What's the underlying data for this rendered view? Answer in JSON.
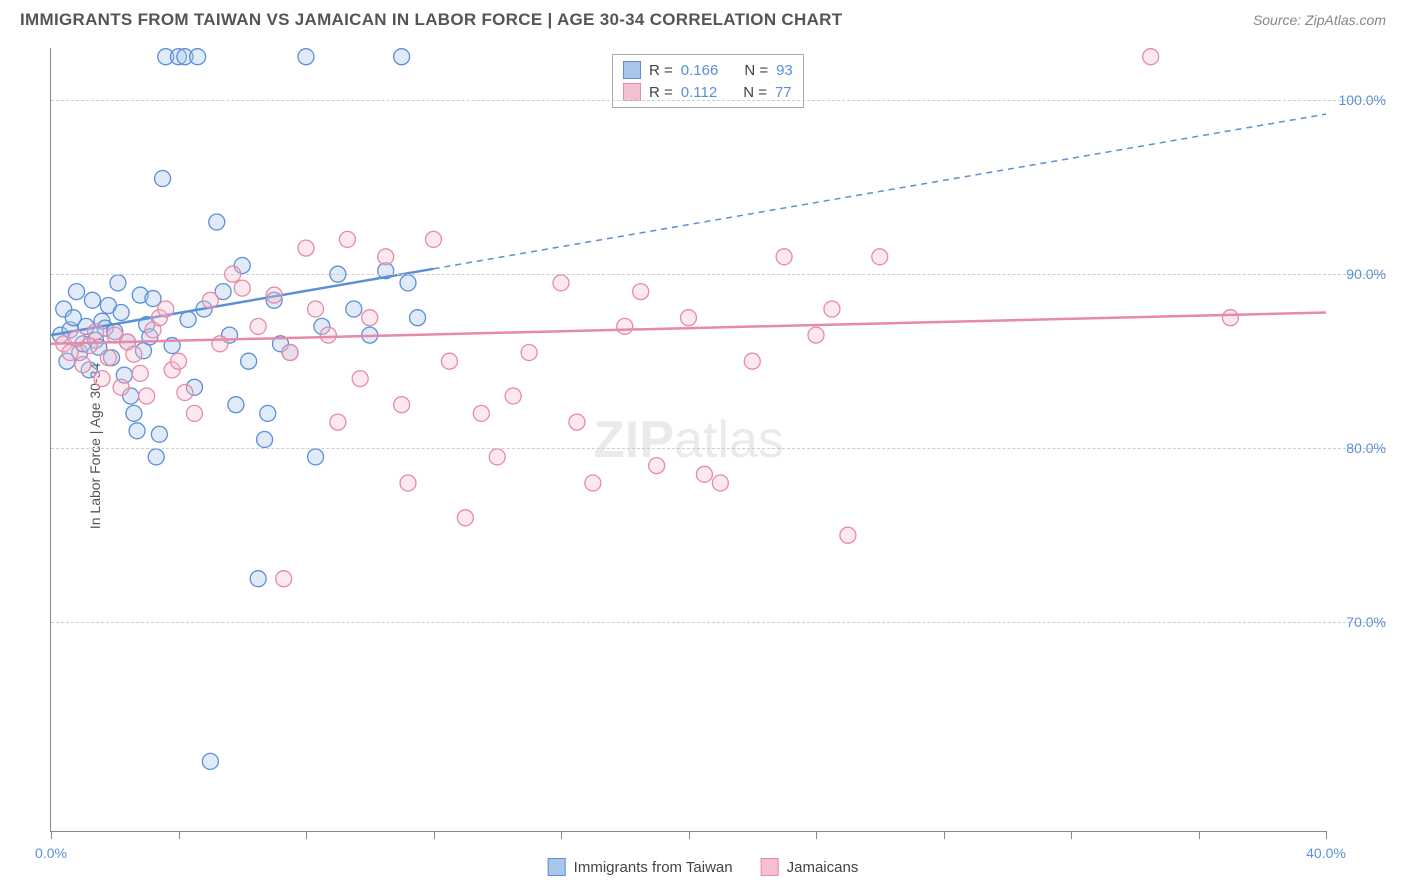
{
  "title": "IMMIGRANTS FROM TAIWAN VS JAMAICAN IN LABOR FORCE | AGE 30-34 CORRELATION CHART",
  "source": "Source: ZipAtlas.com",
  "watermark_prefix": "ZIP",
  "watermark_suffix": "atlas",
  "ylabel": "In Labor Force | Age 30-34",
  "chart": {
    "type": "scatter",
    "xlim": [
      0,
      40
    ],
    "ylim": [
      58,
      103
    ],
    "xticks": [
      0,
      4,
      8,
      12,
      16,
      20,
      24,
      28,
      32,
      36,
      40
    ],
    "xtick_labels_show": {
      "0": "0.0%",
      "40": "40.0%"
    },
    "yticks": [
      70,
      80,
      90,
      100
    ],
    "ytick_labels": [
      "70.0%",
      "80.0%",
      "90.0%",
      "100.0%"
    ],
    "background_color": "#ffffff",
    "grid_color": "#cccccc",
    "marker_radius": 8,
    "marker_fill_opacity": 0.35,
    "marker_stroke_width": 1.3,
    "series": [
      {
        "name": "Immigrants from Taiwan",
        "color": "#5b8fd6",
        "fill": "#a9c5ea",
        "R": "0.166",
        "N": "93",
        "trend": {
          "x1": 0,
          "y1": 86.5,
          "x2": 12,
          "y2": 91.2,
          "solid_to_x": 12,
          "dash_to_x": 40,
          "dash_to_y": 99.2,
          "stroke_width": 2.5
        },
        "points": [
          [
            0.3,
            86.5
          ],
          [
            0.4,
            88.0
          ],
          [
            0.5,
            85.0
          ],
          [
            0.6,
            86.8
          ],
          [
            0.7,
            87.5
          ],
          [
            0.8,
            89.0
          ],
          [
            0.9,
            85.5
          ],
          [
            1.0,
            86.0
          ],
          [
            1.1,
            87.0
          ],
          [
            1.2,
            84.5
          ],
          [
            1.3,
            88.5
          ],
          [
            1.4,
            86.2
          ],
          [
            1.5,
            85.8
          ],
          [
            1.6,
            87.3
          ],
          [
            1.7,
            86.9
          ],
          [
            1.8,
            88.2
          ],
          [
            1.9,
            85.2
          ],
          [
            2.0,
            86.7
          ],
          [
            2.1,
            89.5
          ],
          [
            2.2,
            87.8
          ],
          [
            2.3,
            84.2
          ],
          [
            2.4,
            86.1
          ],
          [
            2.5,
            83.0
          ],
          [
            2.6,
            82.0
          ],
          [
            2.7,
            81.0
          ],
          [
            2.8,
            88.8
          ],
          [
            2.9,
            85.6
          ],
          [
            3.0,
            87.1
          ],
          [
            3.1,
            86.4
          ],
          [
            3.2,
            88.6
          ],
          [
            3.3,
            79.5
          ],
          [
            3.4,
            80.8
          ],
          [
            3.5,
            95.5
          ],
          [
            3.6,
            102.5
          ],
          [
            3.8,
            85.9
          ],
          [
            4.0,
            102.5
          ],
          [
            4.2,
            102.5
          ],
          [
            4.3,
            87.4
          ],
          [
            4.5,
            83.5
          ],
          [
            4.6,
            102.5
          ],
          [
            4.8,
            88.0
          ],
          [
            5.0,
            62.0
          ],
          [
            5.2,
            93.0
          ],
          [
            5.4,
            89.0
          ],
          [
            5.6,
            86.5
          ],
          [
            5.8,
            82.5
          ],
          [
            6.0,
            90.5
          ],
          [
            6.2,
            85.0
          ],
          [
            6.5,
            72.5
          ],
          [
            6.7,
            80.5
          ],
          [
            6.8,
            82.0
          ],
          [
            7.0,
            88.5
          ],
          [
            7.2,
            86.0
          ],
          [
            7.5,
            85.5
          ],
          [
            8.0,
            102.5
          ],
          [
            8.3,
            79.5
          ],
          [
            8.5,
            87.0
          ],
          [
            9.0,
            90.0
          ],
          [
            9.5,
            88.0
          ],
          [
            10.0,
            86.5
          ],
          [
            10.5,
            90.2
          ],
          [
            11.0,
            102.5
          ],
          [
            11.2,
            89.5
          ],
          [
            11.5,
            87.5
          ]
        ]
      },
      {
        "name": "Jamaicans",
        "color": "#e68aa8",
        "fill": "#f4c0d0",
        "R": "0.112",
        "N": "77",
        "trend": {
          "x1": 0,
          "y1": 86.0,
          "x2": 40,
          "y2": 87.8,
          "solid_to_x": 40,
          "stroke_width": 2.5
        },
        "points": [
          [
            0.4,
            86.0
          ],
          [
            0.6,
            85.5
          ],
          [
            0.8,
            86.3
          ],
          [
            1.0,
            84.8
          ],
          [
            1.2,
            85.9
          ],
          [
            1.4,
            86.7
          ],
          [
            1.6,
            84.0
          ],
          [
            1.8,
            85.2
          ],
          [
            2.0,
            86.5
          ],
          [
            2.2,
            83.5
          ],
          [
            2.4,
            86.1
          ],
          [
            2.6,
            85.4
          ],
          [
            2.8,
            84.3
          ],
          [
            3.0,
            83.0
          ],
          [
            3.2,
            86.8
          ],
          [
            3.4,
            87.5
          ],
          [
            3.6,
            88.0
          ],
          [
            3.8,
            84.5
          ],
          [
            4.0,
            85.0
          ],
          [
            4.2,
            83.2
          ],
          [
            4.5,
            82.0
          ],
          [
            5.0,
            88.5
          ],
          [
            5.3,
            86.0
          ],
          [
            5.7,
            90.0
          ],
          [
            6.0,
            89.2
          ],
          [
            6.5,
            87.0
          ],
          [
            7.0,
            88.8
          ],
          [
            7.3,
            72.5
          ],
          [
            7.5,
            85.5
          ],
          [
            8.0,
            91.5
          ],
          [
            8.3,
            88.0
          ],
          [
            8.7,
            86.5
          ],
          [
            9.0,
            81.5
          ],
          [
            9.3,
            92.0
          ],
          [
            9.7,
            84.0
          ],
          [
            10.0,
            87.5
          ],
          [
            10.5,
            91.0
          ],
          [
            11.0,
            82.5
          ],
          [
            11.2,
            78.0
          ],
          [
            12.0,
            92.0
          ],
          [
            12.5,
            85.0
          ],
          [
            13.0,
            76.0
          ],
          [
            13.5,
            82.0
          ],
          [
            14.0,
            79.5
          ],
          [
            14.5,
            83.0
          ],
          [
            15.0,
            85.5
          ],
          [
            16.0,
            89.5
          ],
          [
            16.5,
            81.5
          ],
          [
            17.0,
            78.0
          ],
          [
            18.0,
            87.0
          ],
          [
            18.5,
            89.0
          ],
          [
            19.0,
            79.0
          ],
          [
            20.0,
            87.5
          ],
          [
            20.5,
            78.5
          ],
          [
            21.0,
            78.0
          ],
          [
            22.0,
            85.0
          ],
          [
            23.0,
            91.0
          ],
          [
            24.0,
            86.5
          ],
          [
            24.5,
            88.0
          ],
          [
            25.0,
            75.0
          ],
          [
            26.0,
            91.0
          ],
          [
            34.5,
            102.5
          ],
          [
            37.0,
            87.5
          ]
        ]
      }
    ]
  },
  "legend_top": [
    {
      "swatch_fill": "#a9c5ea",
      "swatch_border": "#5b8fd6",
      "r_label": "R =",
      "r_val": "0.166",
      "n_label": "N =",
      "n_val": "93"
    },
    {
      "swatch_fill": "#f4c0d0",
      "swatch_border": "#e68aa8",
      "r_label": "R =",
      "r_val": "0.112",
      "n_label": "N =",
      "n_val": "77"
    }
  ],
  "legend_bottom": [
    {
      "swatch_fill": "#a9c5ea",
      "swatch_border": "#5b8fd6",
      "label": "Immigrants from Taiwan"
    },
    {
      "swatch_fill": "#f4c0d0",
      "swatch_border": "#e68aa8",
      "label": "Jamaicans"
    }
  ]
}
